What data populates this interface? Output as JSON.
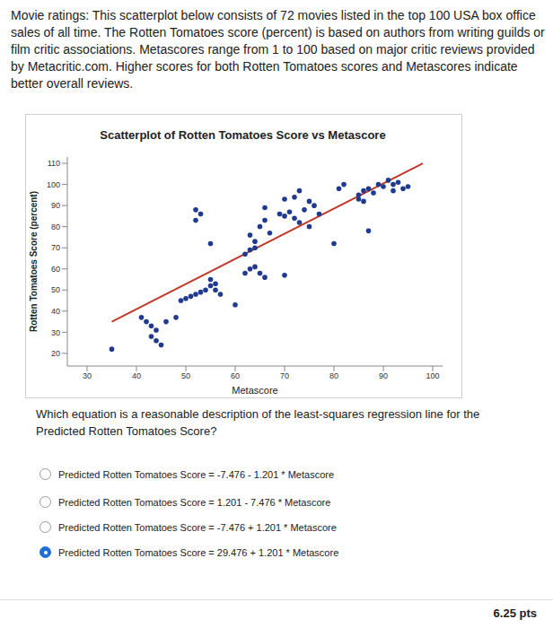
{
  "intro": "Movie ratings: This scatterplot below consists of 72 movies listed in the top 100 USA box office sales of all time. The Rotten Tomatoes score (percent) is based on authors from writing guilds or film critic associations. Metascores range from 1 to 100 based on major critic reviews provided by Metacritic.com. Higher scores for both Rotten Tomatoes scores and Metascores indicate better overall reviews.",
  "chart_data": {
    "type": "scatter",
    "title": "Scatterplot of Rotten Tomatoes Score vs Metascore",
    "x_label": "Metascore",
    "y_label": "Rotten Tomatoes Score (percent)",
    "x": [
      35,
      41,
      42,
      43,
      44,
      43,
      44,
      45,
      46,
      48,
      50,
      51,
      52,
      53,
      54,
      49,
      55,
      55,
      56,
      57,
      56,
      60,
      62,
      63,
      64,
      65,
      66,
      62,
      63,
      64,
      64,
      63,
      52,
      53,
      52,
      55,
      65,
      66,
      67,
      66,
      69,
      70,
      72,
      73,
      75,
      71,
      70,
      72,
      73,
      75,
      74,
      76,
      77,
      70,
      80,
      81,
      82,
      85,
      86,
      87,
      88,
      85,
      86,
      90,
      91,
      92,
      93,
      94,
      95,
      92,
      89,
      87
    ],
    "values": [
      22,
      37,
      35,
      33,
      31,
      28,
      26,
      24,
      35,
      37,
      46,
      47,
      48,
      49,
      50,
      45,
      55,
      52,
      50,
      48,
      53,
      43,
      58,
      60,
      61,
      58,
      56,
      67,
      69,
      70,
      73,
      76,
      83,
      86,
      88,
      72,
      80,
      83,
      77,
      89,
      86,
      85,
      84,
      82,
      80,
      87,
      93,
      94,
      97,
      92,
      88,
      90,
      86,
      57,
      72,
      98,
      100,
      95,
      97,
      98,
      96,
      93,
      92,
      99,
      102,
      100,
      101,
      98,
      99,
      97,
      100,
      78
    ],
    "color": "#1f3a8f",
    "marker": "circle",
    "xlim": [
      26,
      102
    ],
    "ylim": [
      14,
      113
    ],
    "xticks": [
      30,
      40,
      50,
      60,
      70,
      80,
      90,
      100
    ],
    "yticks": [
      20,
      30,
      40,
      50,
      60,
      70,
      80,
      90,
      100,
      110
    ],
    "regression_line": {
      "x": [
        35,
        98
      ],
      "values": [
        35,
        110
      ],
      "color": "#c0392b"
    }
  },
  "question": "Which equation is a reasonable description of the least-squares regression line for the Predicted Rotten Tomatoes Score?",
  "choices": [
    "Predicted Rotten Tomatoes Score = -7.476 - 1.201 * Metascore",
    "Predicted Rotten Tomatoes Score = 1.201 - 7.476 * Metascore",
    "Predicted Rotten Tomatoes Score = -7.476 + 1.201 * Metascore",
    "Predicted Rotten Tomatoes Score = 29.476 + 1.201 * Metascore"
  ],
  "selected": 3,
  "points": "6.25 pts"
}
